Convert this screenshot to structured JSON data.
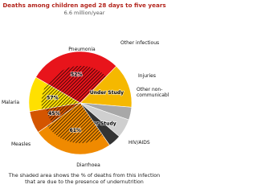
{
  "chart_data": {
    "type": "pie",
    "title": "Deaths among children aged 28 days to five years",
    "subtitle": "6.6 million/year",
    "categories": [
      "Pneumonia",
      "Other infectious",
      "Injuries",
      "Other non-communicable",
      "HIV/AIDS",
      "Diarrhoea",
      "Measles",
      "Malaria"
    ],
    "values": [
      29,
      14,
      4,
      6,
      4,
      25,
      7,
      11
    ],
    "colors": [
      "#e8141b",
      "#f5b800",
      "#a8a8a8",
      "#cfcfcf",
      "#333333",
      "#f08a00",
      "#d45500",
      "#ffe000"
    ],
    "shaded": [
      52,
      null,
      null,
      null,
      null,
      61,
      45,
      57
    ],
    "shaded_labels": [
      "52%",
      "Under Study",
      null,
      null,
      "Under Study",
      "61%",
      "45%",
      "57%"
    ],
    "note": "The shaded area shows the % of deaths from this infection that are due to the presence of undernutrition"
  }
}
